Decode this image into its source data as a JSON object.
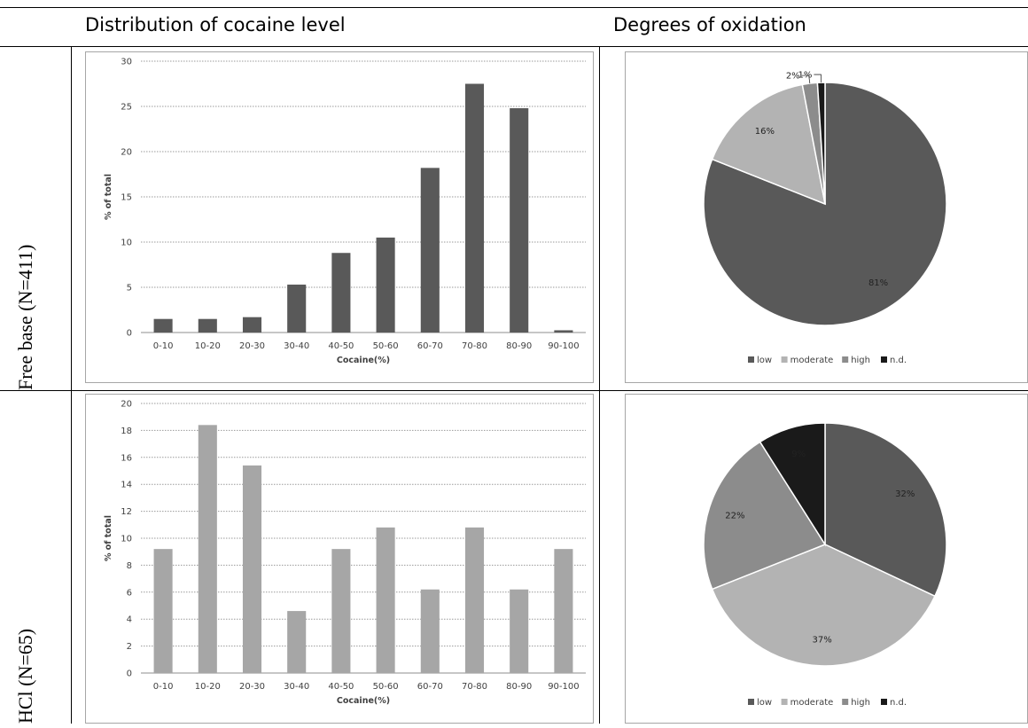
{
  "headers": {
    "col1": "Distribution of cocaine level",
    "col2": "Degrees of oxidation"
  },
  "rows": {
    "row1": "Free base (N=411)",
    "row2": "HCl (N=65)"
  },
  "colors": {
    "bar_freebase": "#595959",
    "bar_hcl": "#a6a6a6",
    "low": "#595959",
    "moderate": "#b3b3b3",
    "high": "#8c8c8c",
    "nd": "#1a1a1a"
  },
  "chart_data": [
    {
      "type": "bar",
      "categories": [
        "0-10",
        "10-20",
        "20-30",
        "30-40",
        "40-50",
        "50-60",
        "60-70",
        "70-80",
        "80-90",
        "90-100"
      ],
      "values": [
        1.5,
        1.5,
        1.7,
        5.3,
        8.8,
        10.5,
        18.2,
        27.5,
        24.8,
        0.25
      ],
      "yticks": [
        "0",
        "5",
        "10",
        "15",
        "20",
        "25",
        "30"
      ],
      "ylim": [
        0,
        30
      ],
      "xlabel": "Cocaine(%)",
      "ylabel": "% of total",
      "grid": true
    },
    {
      "type": "pie",
      "labels": [
        "low",
        "moderate",
        "high",
        "n.d."
      ],
      "values": [
        81,
        16,
        2,
        1
      ],
      "value_labels": [
        "81%",
        "16%",
        "2%",
        "1%"
      ],
      "legend": [
        "low",
        "moderate",
        "high",
        "n.d."
      ],
      "legend_position": "bottom"
    },
    {
      "type": "bar",
      "categories": [
        "0-10",
        "10-20",
        "20-30",
        "30-40",
        "40-50",
        "50-60",
        "60-70",
        "70-80",
        "80-90",
        "90-100"
      ],
      "values": [
        9.2,
        18.4,
        15.4,
        4.6,
        9.2,
        10.8,
        6.2,
        10.8,
        6.2,
        9.2
      ],
      "yticks": [
        "0",
        "2",
        "4",
        "6",
        "8",
        "10",
        "12",
        "14",
        "16",
        "18",
        "20"
      ],
      "ylim": [
        0,
        20
      ],
      "xlabel": "Cocaine(%)",
      "ylabel": "% of total",
      "grid": true
    },
    {
      "type": "pie",
      "labels": [
        "low",
        "moderate",
        "high",
        "n.d."
      ],
      "values": [
        32,
        37,
        22,
        9
      ],
      "value_labels": [
        "32%",
        "37%",
        "22%",
        "9%"
      ],
      "legend": [
        "low",
        "moderate",
        "high",
        "n.d."
      ],
      "legend_position": "bottom"
    }
  ]
}
